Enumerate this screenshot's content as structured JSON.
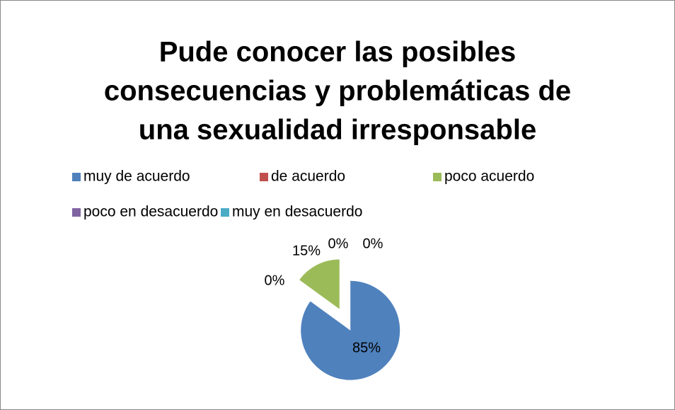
{
  "chart_data": {
    "type": "pie",
    "title_lines": [
      "Pude conocer las posibles",
      "consecuencias y problemáticas de",
      "una sexualidad irresponsable"
    ],
    "categories": [
      "muy de acuerdo",
      "de acuerdo",
      "poco acuerdo",
      "poco en desacuerdo",
      "muy en desacuerdo"
    ],
    "values": [
      85,
      0,
      15,
      0,
      0
    ],
    "value_labels": [
      "85%",
      "0%",
      "15%",
      "0%",
      "0%"
    ],
    "colors": [
      "#4f81bd",
      "#c0504d",
      "#9bbb59",
      "#8064a2",
      "#4bacc6"
    ],
    "legend": "top"
  }
}
